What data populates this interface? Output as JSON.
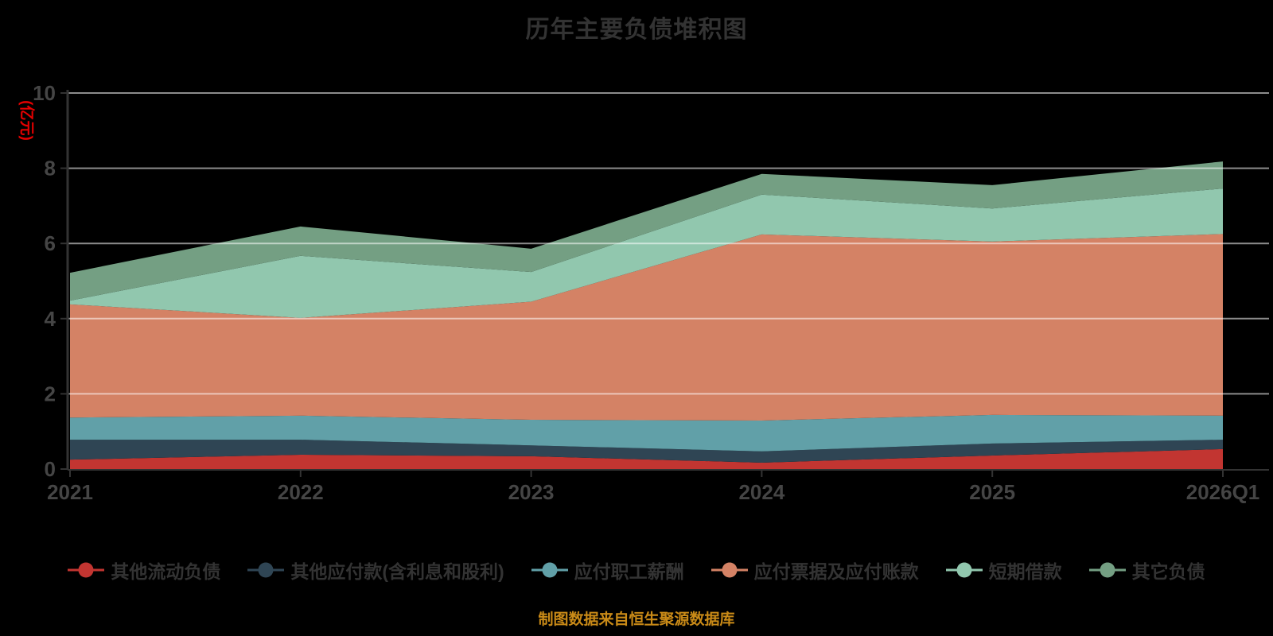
{
  "chart_data": {
    "type": "area",
    "stacked": true,
    "title": "历年主要负债堆积图",
    "unit_label": "(亿元)",
    "categories": [
      "2021",
      "2022",
      "2023",
      "2024",
      "2025",
      "2026Q1"
    ],
    "series": [
      {
        "name": "其他流动负债",
        "color": "#c23531",
        "values": [
          0.25,
          0.38,
          0.34,
          0.17,
          0.36,
          0.53
        ]
      },
      {
        "name": "其他应付款(含利息和股利)",
        "color": "#2f4554",
        "values": [
          0.53,
          0.4,
          0.29,
          0.3,
          0.32,
          0.25
        ]
      },
      {
        "name": "应付职工薪酬",
        "color": "#61a0a8",
        "values": [
          0.59,
          0.64,
          0.68,
          0.82,
          0.76,
          0.64
        ]
      },
      {
        "name": "应付票据及应付账款",
        "color": "#d48265",
        "values": [
          3.01,
          2.6,
          3.14,
          4.95,
          4.61,
          4.83
        ]
      },
      {
        "name": "短期借款",
        "color": "#91c7ae",
        "values": [
          0.1,
          1.65,
          0.79,
          1.06,
          0.88,
          1.21
        ]
      },
      {
        "name": "其它负债",
        "color": "#749f83",
        "values": [
          0.74,
          0.78,
          0.62,
          0.55,
          0.62,
          0.72
        ]
      }
    ],
    "yticks": [
      0,
      2,
      4,
      6,
      8,
      10
    ],
    "ylim": [
      0,
      10
    ],
    "grid": true,
    "legend_position": "bottom"
  },
  "footer": {
    "source_note": "制图数据来自恒生聚源数据库"
  },
  "colors": {
    "background": "#000000",
    "title_text": "#333333",
    "axis_text": "#454545",
    "axis_line": "#333333",
    "gridline": "rgba(255,255,255,0.55)",
    "unit_label": "#e60000",
    "legend_text": "#333333",
    "source_note": "#c98a17"
  }
}
